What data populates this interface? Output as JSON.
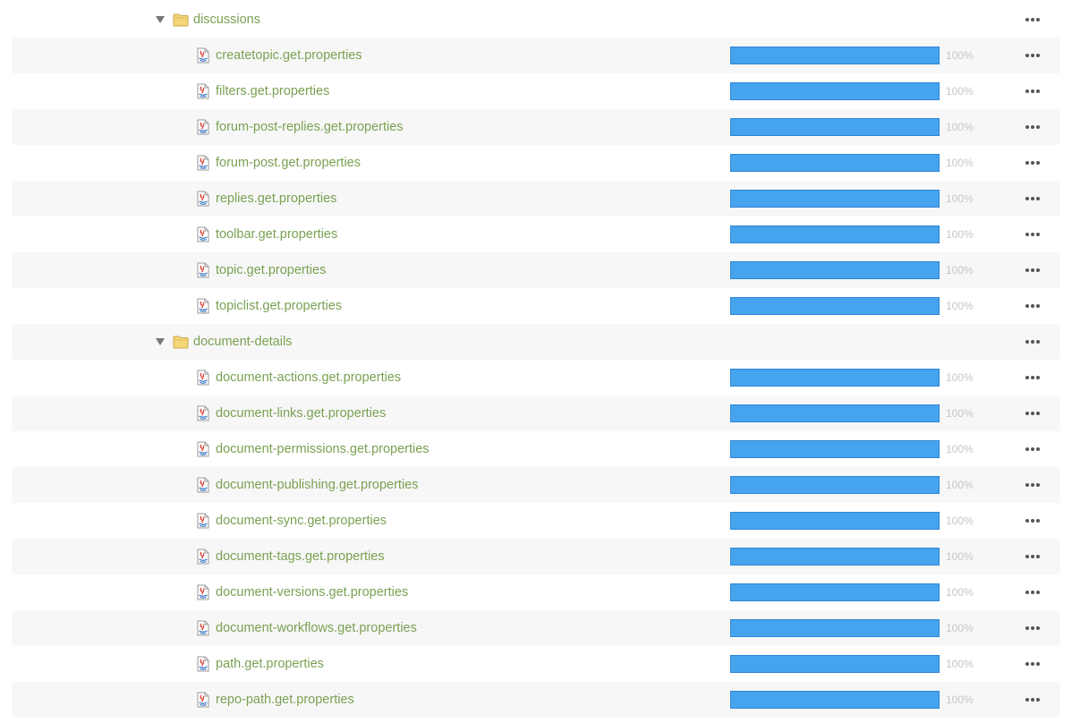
{
  "colors": {
    "label": "#7aa152",
    "progress_fill": "#46a3ee",
    "progress_border": "#2f86d4",
    "percent_text": "#c6c6c6",
    "row_alt": "#f7f7f7",
    "folder": "#f5d77a"
  },
  "icons": {
    "toggle": "triangle-down-icon",
    "folder": "folder-icon",
    "file": "java-properties-file-icon",
    "actions": "more-horizontal-icon"
  },
  "rows": [
    {
      "type": "folder",
      "name": "discussions",
      "expanded": true
    },
    {
      "type": "file",
      "name": "createtopic.get.properties",
      "progress": 100,
      "progress_label": "100%"
    },
    {
      "type": "file",
      "name": "filters.get.properties",
      "progress": 100,
      "progress_label": "100%"
    },
    {
      "type": "file",
      "name": "forum-post-replies.get.properties",
      "progress": 100,
      "progress_label": "100%"
    },
    {
      "type": "file",
      "name": "forum-post.get.properties",
      "progress": 100,
      "progress_label": "100%"
    },
    {
      "type": "file",
      "name": "replies.get.properties",
      "progress": 100,
      "progress_label": "100%"
    },
    {
      "type": "file",
      "name": "toolbar.get.properties",
      "progress": 100,
      "progress_label": "100%"
    },
    {
      "type": "file",
      "name": "topic.get.properties",
      "progress": 100,
      "progress_label": "100%"
    },
    {
      "type": "file",
      "name": "topiclist.get.properties",
      "progress": 100,
      "progress_label": "100%"
    },
    {
      "type": "folder",
      "name": "document-details",
      "expanded": true
    },
    {
      "type": "file",
      "name": "document-actions.get.properties",
      "progress": 100,
      "progress_label": "100%"
    },
    {
      "type": "file",
      "name": "document-links.get.properties",
      "progress": 100,
      "progress_label": "100%"
    },
    {
      "type": "file",
      "name": "document-permissions.get.properties",
      "progress": 100,
      "progress_label": "100%"
    },
    {
      "type": "file",
      "name": "document-publishing.get.properties",
      "progress": 100,
      "progress_label": "100%"
    },
    {
      "type": "file",
      "name": "document-sync.get.properties",
      "progress": 100,
      "progress_label": "100%"
    },
    {
      "type": "file",
      "name": "document-tags.get.properties",
      "progress": 100,
      "progress_label": "100%"
    },
    {
      "type": "file",
      "name": "document-versions.get.properties",
      "progress": 100,
      "progress_label": "100%"
    },
    {
      "type": "file",
      "name": "document-workflows.get.properties",
      "progress": 100,
      "progress_label": "100%"
    },
    {
      "type": "file",
      "name": "path.get.properties",
      "progress": 100,
      "progress_label": "100%"
    },
    {
      "type": "file",
      "name": "repo-path.get.properties",
      "progress": 100,
      "progress_label": "100%"
    }
  ]
}
